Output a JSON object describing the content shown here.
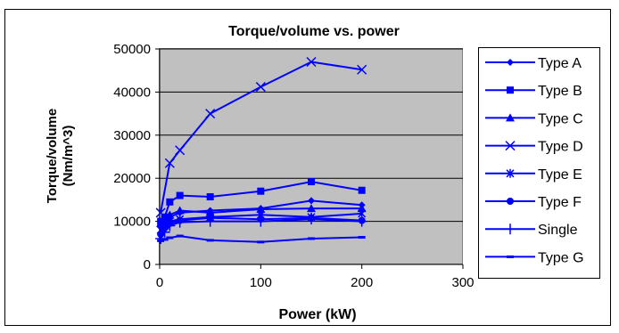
{
  "chart_data": {
    "type": "line",
    "title": "Torque/volume vs. power",
    "xlabel": "Power (kW)",
    "ylabel_lines": [
      "Torque/volume",
      "(Nm/m^3)"
    ],
    "xlim": [
      0,
      300
    ],
    "ylim": [
      0,
      50000
    ],
    "x_ticks": [
      0,
      100,
      200,
      300
    ],
    "y_ticks": [
      0,
      10000,
      20000,
      30000,
      40000,
      50000
    ],
    "plot_background": "#c0c0c0",
    "series_color": "#0000ff",
    "legend_position": "right",
    "series": [
      {
        "name": "Type A",
        "marker": "diamond",
        "x": [
          1,
          5,
          10,
          20,
          50,
          100,
          150,
          200
        ],
        "y": [
          9000,
          10000,
          11000,
          12000,
          12500,
          13000,
          14800,
          13800
        ]
      },
      {
        "name": "Type B",
        "marker": "square",
        "x": [
          1,
          5,
          10,
          20,
          50,
          100,
          150,
          200
        ],
        "y": [
          10000,
          11000,
          14500,
          16000,
          15700,
          17000,
          19200,
          17200
        ]
      },
      {
        "name": "Type C",
        "marker": "triangle",
        "x": [
          1,
          5,
          10,
          20,
          50,
          100,
          150,
          200
        ],
        "y": [
          9500,
          10500,
          11500,
          12500,
          12000,
          12800,
          13000,
          13000
        ]
      },
      {
        "name": "Type D",
        "marker": "x",
        "x": [
          1,
          10,
          20,
          50,
          100,
          150,
          200
        ],
        "y": [
          12000,
          23500,
          26500,
          35000,
          41200,
          47000,
          45200
        ]
      },
      {
        "name": "Type E",
        "marker": "star",
        "x": [
          1,
          5,
          10,
          20,
          50,
          100,
          150,
          200
        ],
        "y": [
          8000,
          9000,
          10000,
          10500,
          11000,
          11500,
          11000,
          11800
        ]
      },
      {
        "name": "Type F",
        "marker": "circle",
        "x": [
          1,
          5,
          10,
          20,
          50,
          100,
          150,
          200
        ],
        "y": [
          7000,
          8500,
          9500,
          10200,
          10800,
          10500,
          10800,
          10200
        ]
      },
      {
        "name": "Single",
        "marker": "plus",
        "x": [
          1,
          5,
          10,
          20,
          50,
          100,
          150,
          200
        ],
        "y": [
          6000,
          7500,
          9000,
          9800,
          10000,
          10000,
          10500,
          10000
        ]
      },
      {
        "name": "Type G",
        "marker": "dash",
        "x": [
          1,
          5,
          10,
          20,
          50,
          100,
          150,
          200
        ],
        "y": [
          5500,
          5800,
          6200,
          6600,
          5600,
          5200,
          6000,
          6300
        ]
      }
    ]
  }
}
